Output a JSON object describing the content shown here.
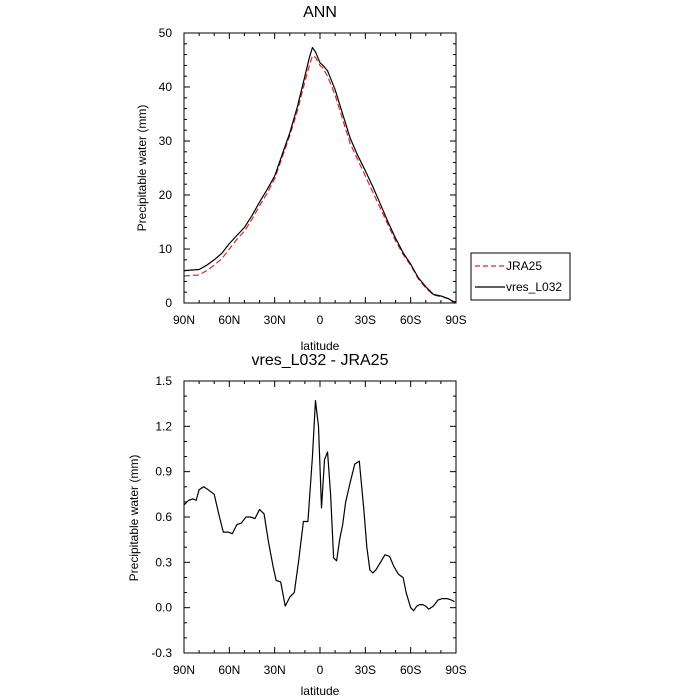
{
  "chart_data": [
    {
      "type": "line",
      "title": "ANN",
      "xlabel": "latitude",
      "ylabel": "Precipitable water (mm)",
      "xlim": [
        90,
        -90
      ],
      "ylim": [
        0,
        50
      ],
      "x_ticks": [
        90,
        60,
        30,
        0,
        -30,
        -60,
        -90
      ],
      "x_tick_labels": [
        "90N",
        "60N",
        "30N",
        "0",
        "30S",
        "60S",
        "90S"
      ],
      "y_ticks": [
        0,
        10,
        20,
        30,
        40,
        50
      ],
      "y_tick_labels": [
        "0",
        "10",
        "20",
        "30",
        "40",
        "50"
      ],
      "legend": {
        "placement": "right-outside",
        "entries": [
          "JRA25",
          "vres_L032"
        ]
      },
      "x": [
        90,
        80,
        75,
        70,
        65,
        60,
        55,
        50,
        45,
        40,
        35,
        30,
        25,
        20,
        15,
        10,
        7,
        5,
        3,
        0,
        -2,
        -5,
        -10,
        -15,
        -20,
        -25,
        -30,
        -35,
        -40,
        -45,
        -50,
        -55,
        -60,
        -65,
        -70,
        -75,
        -80,
        -85,
        -88,
        -90
      ],
      "series": [
        {
          "name": "JRA25",
          "color": "#d62728",
          "dash": "dashed",
          "values": [
            5.0,
            5.2,
            6.0,
            7.0,
            8.2,
            10.0,
            11.8,
            13.3,
            15.5,
            18.0,
            20.3,
            23.0,
            27.0,
            31.0,
            35.5,
            41.0,
            44.0,
            45.8,
            45.5,
            44.0,
            43.5,
            42.0,
            38.5,
            34.0,
            29.5,
            26.5,
            23.5,
            20.5,
            17.5,
            14.5,
            11.5,
            9.0,
            7.0,
            4.5,
            2.8,
            1.5,
            1.2,
            0.8,
            0.2,
            0.1
          ]
        },
        {
          "name": "vres_L032",
          "color": "#000000",
          "dash": "solid",
          "values": [
            6.0,
            6.2,
            7.0,
            8.0,
            9.2,
            11.0,
            12.5,
            14.0,
            16.2,
            18.7,
            21.0,
            23.5,
            27.5,
            31.5,
            36.3,
            42.0,
            45.5,
            47.3,
            46.5,
            44.5,
            44.0,
            43.0,
            39.5,
            35.0,
            30.5,
            27.3,
            24.5,
            21.5,
            18.3,
            15.0,
            12.0,
            9.3,
            7.2,
            4.7,
            3.0,
            1.6,
            1.3,
            0.8,
            0.3,
            0.2
          ]
        }
      ]
    },
    {
      "type": "line",
      "title": "vres_L032 - JRA25",
      "xlabel": "latitude",
      "ylabel": "Precipitable water (mm)",
      "xlim": [
        90,
        -90
      ],
      "ylim": [
        -0.3,
        1.5
      ],
      "x_ticks": [
        90,
        60,
        30,
        0,
        -30,
        -60,
        -90
      ],
      "x_tick_labels": [
        "90N",
        "60N",
        "30N",
        "0",
        "30S",
        "60S",
        "90S"
      ],
      "y_ticks": [
        -0.3,
        0.0,
        0.3,
        0.6,
        0.9,
        1.2,
        1.5
      ],
      "y_tick_labels": [
        "-0.3",
        "0.0",
        "0.3",
        "0.6",
        "0.9",
        "1.2",
        "1.5"
      ],
      "x": [
        90,
        87,
        84,
        82,
        80,
        77,
        74,
        70,
        67,
        64,
        61,
        58,
        55,
        52,
        49,
        46,
        43,
        40,
        37,
        34,
        31,
        29,
        26,
        23,
        20,
        17,
        14,
        11,
        8,
        5,
        3,
        1,
        -1,
        -3,
        -5,
        -7,
        -9,
        -11,
        -13,
        -15,
        -17,
        -20,
        -23,
        -26,
        -29,
        -31,
        -33,
        -35,
        -37,
        -40,
        -43,
        -46,
        -49,
        -52,
        -55,
        -57,
        -60,
        -62,
        -64,
        -66,
        -68,
        -70,
        -72,
        -75,
        -78,
        -81,
        -84,
        -87,
        -89
      ],
      "series": [
        {
          "name": "vres_L032",
          "color": "#000000",
          "dash": "solid",
          "values": [
            0.68,
            0.71,
            0.72,
            0.71,
            0.78,
            0.8,
            0.78,
            0.75,
            0.62,
            0.5,
            0.5,
            0.49,
            0.55,
            0.56,
            0.6,
            0.6,
            0.59,
            0.65,
            0.62,
            0.43,
            0.27,
            0.18,
            0.17,
            0.01,
            0.07,
            0.1,
            0.32,
            0.57,
            0.57,
            1.0,
            1.37,
            1.2,
            0.66,
            0.98,
            1.03,
            0.75,
            0.33,
            0.31,
            0.45,
            0.55,
            0.7,
            0.83,
            0.95,
            0.97,
            0.65,
            0.4,
            0.25,
            0.23,
            0.25,
            0.3,
            0.35,
            0.34,
            0.27,
            0.22,
            0.2,
            0.1,
            0.0,
            -0.02,
            0.01,
            0.02,
            0.02,
            0.01,
            -0.01,
            0.01,
            0.05,
            0.06,
            0.06,
            0.05,
            0.04
          ]
        }
      ]
    }
  ]
}
